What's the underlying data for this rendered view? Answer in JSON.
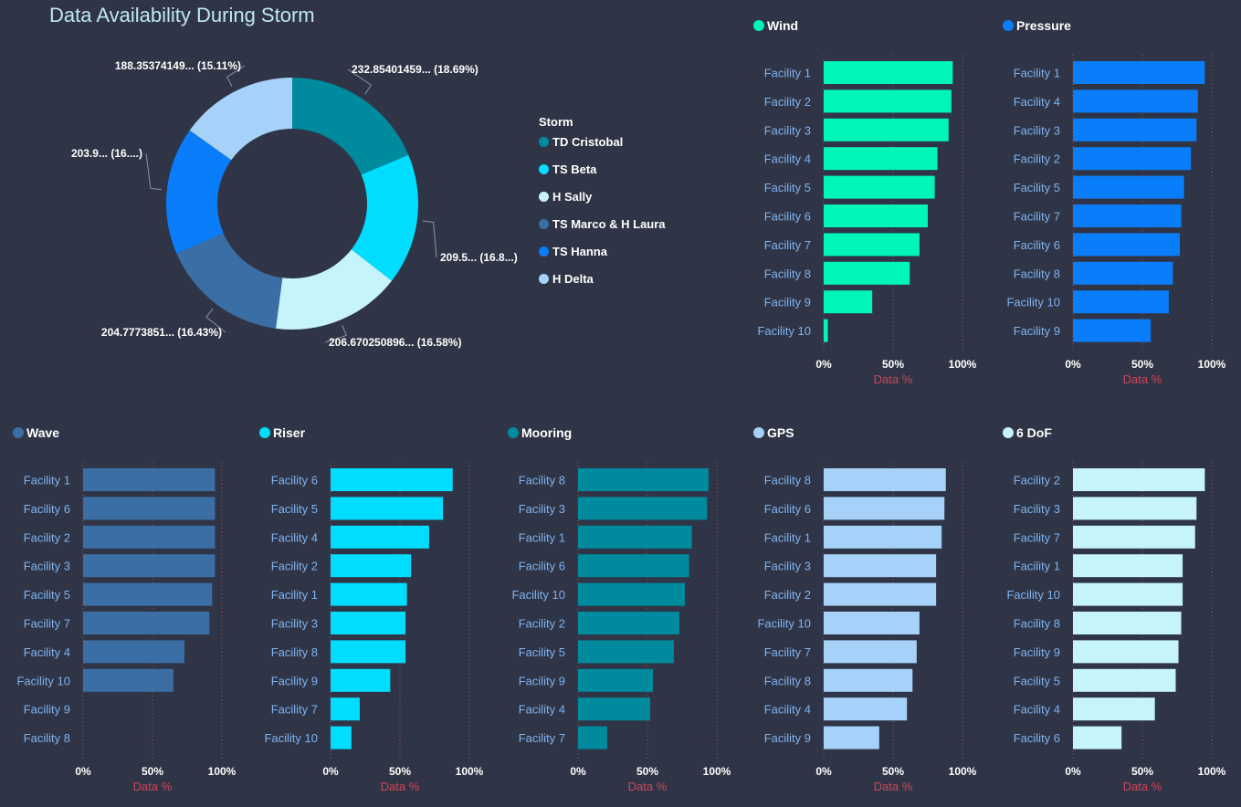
{
  "title": "Data Availability During Storm",
  "chart_data": [
    {
      "type": "pie",
      "variant": "donut",
      "legend_title": "Storm",
      "slices": [
        {
          "name": "TD Cristobal",
          "value": 232.85401459,
          "label": "232.85401459... (18.69%)",
          "color": "#008a9e"
        },
        {
          "name": "TS Beta",
          "value": 209.5,
          "label": "209.5... (16.8...)",
          "color": "#00ddff"
        },
        {
          "name": "H Sally",
          "value": 206.670250896,
          "label": "206.670250896... (16.58%)",
          "color": "#c5f4fb"
        },
        {
          "name": "TS Marco & H Laura",
          "value": 204.7773851,
          "label": "204.7773851... (16.43%)",
          "color": "#3a6ea5"
        },
        {
          "name": "TS Hanna",
          "value": 203.9,
          "label": "203.9... (16....)",
          "color": "#0a7dfa"
        },
        {
          "name": "H Delta",
          "value": 188.35374149,
          "label": "188.35374149... (15.11%)",
          "color": "#a6d2fa"
        }
      ]
    },
    {
      "type": "bar",
      "orientation": "horizontal",
      "name": "Wind",
      "color": "#00f5b8",
      "categories": [
        "Facility 1",
        "Facility 2",
        "Facility 3",
        "Facility 4",
        "Facility 5",
        "Facility 6",
        "Facility 7",
        "Facility 8",
        "Facility 9",
        "Facility 10"
      ],
      "values": [
        93,
        92,
        90,
        82,
        80,
        75,
        69,
        62,
        35,
        3
      ],
      "xlabel": "Data %",
      "xlim": [
        0,
        100
      ],
      "ticks": [
        "0%",
        "50%",
        "100%"
      ]
    },
    {
      "type": "bar",
      "orientation": "horizontal",
      "name": "Pressure",
      "color": "#0a7dfa",
      "categories": [
        "Facility 1",
        "Facility 4",
        "Facility 3",
        "Facility 2",
        "Facility 5",
        "Facility 7",
        "Facility 6",
        "Facility 8",
        "Facility 10",
        "Facility 9"
      ],
      "values": [
        95,
        90,
        89,
        85,
        80,
        78,
        77,
        72,
        69,
        56
      ],
      "xlabel": "Data %",
      "xlim": [
        0,
        100
      ],
      "ticks": [
        "0%",
        "50%",
        "100%"
      ]
    },
    {
      "type": "bar",
      "orientation": "horizontal",
      "name": "Wave",
      "color": "#3a6ea5",
      "categories": [
        "Facility 1",
        "Facility 6",
        "Facility 2",
        "Facility 3",
        "Facility 5",
        "Facility 7",
        "Facility 4",
        "Facility 10",
        "Facility 9",
        "Facility 8"
      ],
      "values": [
        95,
        95,
        95,
        95,
        93,
        91,
        73,
        65,
        0,
        0
      ],
      "values_note": "",
      "xlabel": "Data %",
      "xlim": [
        0,
        100
      ],
      "ticks": [
        "0%",
        "50%",
        "100%"
      ]
    },
    {
      "type": "bar",
      "orientation": "horizontal",
      "name": "Riser",
      "color": "#00ddff",
      "categories": [
        "Facility 6",
        "Facility 5",
        "Facility 4",
        "Facility 2",
        "Facility 1",
        "Facility 3",
        "Facility 8",
        "Facility 9",
        "Facility 7",
        "Facility 10"
      ],
      "values": [
        88,
        81,
        71,
        58,
        55,
        54,
        54,
        43,
        21,
        15
      ],
      "xlabel": "Data %",
      "xlim": [
        0,
        100
      ],
      "ticks": [
        "0%",
        "50%",
        "100%"
      ]
    },
    {
      "type": "bar",
      "orientation": "horizontal",
      "name": "Mooring",
      "color": "#008a9e",
      "categories": [
        "Facility 8",
        "Facility 3",
        "Facility 1",
        "Facility 6",
        "Facility 10",
        "Facility 2",
        "Facility 5",
        "Facility 9",
        "Facility 4",
        "Facility 7"
      ],
      "values": [
        94,
        93,
        82,
        80,
        77,
        73,
        69,
        54,
        52,
        21
      ],
      "xlabel": "Data %",
      "xlim": [
        0,
        100
      ],
      "ticks": [
        "0%",
        "50%",
        "100%"
      ]
    },
    {
      "type": "bar",
      "orientation": "horizontal",
      "name": "GPS",
      "color": "#a6d2fa",
      "categories": [
        "Facility 8",
        "Facility 6",
        "Facility 1",
        "Facility 3",
        "Facility 2",
        "Facility 10",
        "Facility 7",
        "Facility 8",
        "Facility 4",
        "Facility 9"
      ],
      "values": [
        88,
        87,
        85,
        81,
        81,
        69,
        67,
        64,
        60,
        40
      ],
      "xlabel": "Data %",
      "xlim": [
        0,
        100
      ],
      "ticks": [
        "0%",
        "50%",
        "100%"
      ]
    },
    {
      "type": "bar",
      "orientation": "horizontal",
      "name": "6 DoF",
      "color": "#c5f4fb",
      "categories": [
        "Facility 2",
        "Facility 3",
        "Facility 7",
        "Facility 1",
        "Facility 10",
        "Facility 8",
        "Facility 9",
        "Facility 5",
        "Facility 4",
        "Facility 6"
      ],
      "values": [
        95,
        89,
        88,
        79,
        79,
        78,
        76,
        74,
        59,
        35
      ],
      "xlabel": "Data %",
      "xlim": [
        0,
        100
      ],
      "ticks": [
        "0%",
        "50%",
        "100%"
      ]
    }
  ]
}
